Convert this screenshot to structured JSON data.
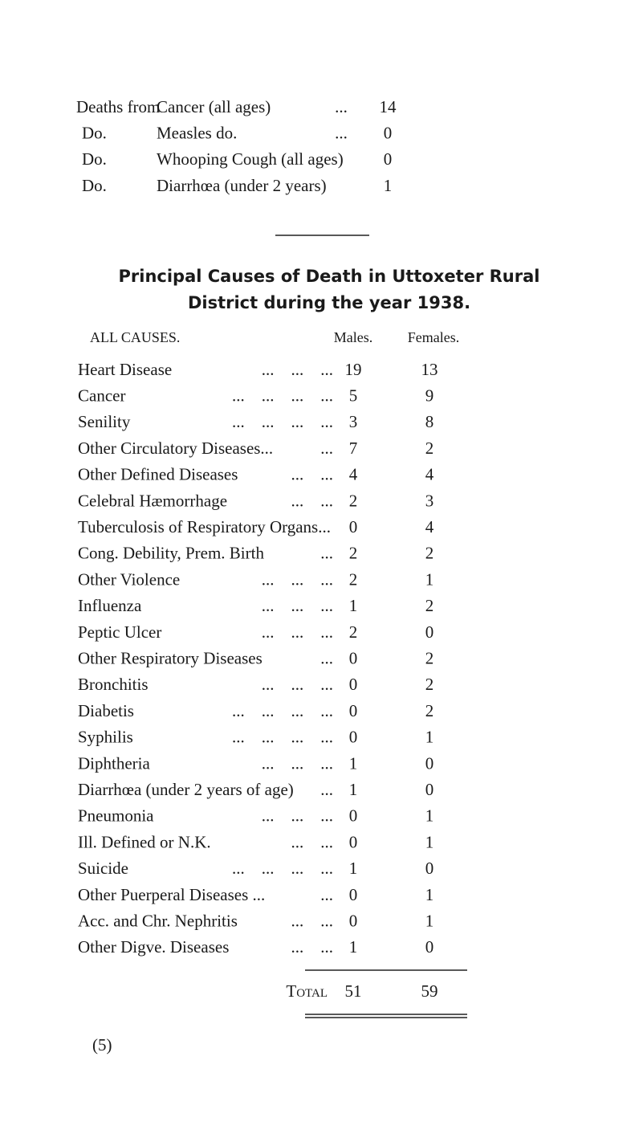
{
  "summary": {
    "rows": [
      [
        "Deaths from",
        "Cancer (all ages)",
        "...",
        "14"
      ],
      [
        "Do.",
        "Measles do.",
        "...",
        "0"
      ],
      [
        "Do.",
        "Whooping Cough (all ages)",
        "0"
      ],
      [
        "Do.",
        "Diarrhœa (under 2 years)",
        "1"
      ]
    ]
  },
  "heading": {
    "line1": "Principal Causes of Death in Uttoxeter Rural",
    "line2": "District during the year 1938."
  },
  "table": {
    "columns": [
      "ALL CAUSES.",
      "Males.",
      "Females."
    ],
    "rows": [
      {
        "cause": "Heart Disease",
        "leader": "...    ...    ...",
        "males": 19,
        "females": 13
      },
      {
        "cause": "Cancer",
        "leader": "...    ...    ...    ...",
        "males": 5,
        "females": 9
      },
      {
        "cause": "Senility",
        "leader": "...    ...    ...    ...",
        "males": 3,
        "females": 8
      },
      {
        "cause": "Other Circulatory Diseases...",
        "leader": "...",
        "males": 7,
        "females": 2
      },
      {
        "cause": "Other Defined Diseases",
        "leader": "...    ...",
        "males": 4,
        "females": 4
      },
      {
        "cause": "Celebral Hæmorrhage",
        "leader": "...    ...",
        "males": 2,
        "females": 3
      },
      {
        "cause": "Tuberculosis of Respiratory Organs...",
        "males": 0,
        "females": 4
      },
      {
        "cause": "Cong. Debility, Prem. Birth",
        "leader": "...",
        "males": 2,
        "females": 2
      },
      {
        "cause": "Other Violence",
        "leader": "...    ...    ...",
        "males": 2,
        "females": 1
      },
      {
        "cause": "Influenza",
        "leader": "...    ...    ...",
        "males": 1,
        "females": 2
      },
      {
        "cause": "Peptic Ulcer",
        "leader": "...    ...    ...",
        "males": 2,
        "females": 0
      },
      {
        "cause": "Other Respiratory Diseases",
        "leader": "...",
        "males": 0,
        "females": 2
      },
      {
        "cause": "Bronchitis",
        "leader": "...    ...    ...",
        "males": 0,
        "females": 2
      },
      {
        "cause": "Diabetis",
        "leader": "...    ...    ...    ...",
        "males": 0,
        "females": 2
      },
      {
        "cause": "Syphilis",
        "leader": "...    ...    ...    ...",
        "males": 0,
        "females": 1
      },
      {
        "cause": "Diphtheria",
        "leader": "...    ...    ...",
        "males": 1,
        "females": 0
      },
      {
        "cause": "Diarrhœa (under 2 years of age)",
        "leader": "...",
        "males": 1,
        "females": 0
      },
      {
        "cause": "Pneumonia",
        "leader": "...    ...    ...",
        "males": 0,
        "females": 1
      },
      {
        "cause": "Ill. Defined or N.K.",
        "leader": "...    ...",
        "males": 0,
        "females": 1
      },
      {
        "cause": "Suicide",
        "leader": "...    ...    ...    ...",
        "males": 1,
        "females": 0
      },
      {
        "cause": "Other Puerperal Diseases ...",
        "leader": "...",
        "males": 0,
        "females": 1
      },
      {
        "cause": "Acc. and Chr. Nephritis",
        "leader": "...    ...",
        "males": 0,
        "females": 1
      },
      {
        "cause": "Other Digve. Diseases",
        "leader": "...    ...",
        "males": 1,
        "females": 0
      }
    ],
    "total": {
      "label": "Total",
      "males": 51,
      "females": 59
    }
  },
  "footer": {
    "page": "(5)"
  }
}
